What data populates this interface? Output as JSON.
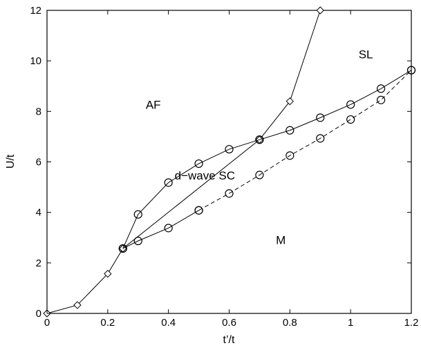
{
  "chart_data": {
    "type": "line",
    "title": "",
    "xlabel": "t’/t",
    "ylabel": "U/t",
    "xlim": [
      0,
      1.2
    ],
    "ylim": [
      0,
      12
    ],
    "x_ticks": [
      0,
      0.2,
      0.4,
      0.6,
      0.8,
      1,
      1.2
    ],
    "x_tick_labels": [
      "0",
      "0.2",
      "0.4",
      "0.6",
      "0.8",
      "1",
      "1.2"
    ],
    "y_ticks": [
      0,
      2,
      4,
      6,
      8,
      10,
      12
    ],
    "y_tick_labels": [
      "0",
      "2",
      "4",
      "6",
      "8",
      "10",
      "12"
    ],
    "grid": false,
    "legend": false,
    "series": [
      {
        "line_style": "solid",
        "marker": "diamond",
        "color": "#000000",
        "points": [
          [
            0,
            0
          ],
          [
            0.1,
            0.33
          ],
          [
            0.2,
            1.57
          ],
          [
            0.25,
            2.57
          ],
          [
            0.7,
            6.88
          ],
          [
            0.8,
            8.4
          ],
          [
            0.9,
            12
          ]
        ]
      },
      {
        "line_style": "solid",
        "marker": "circle",
        "color": "#000000",
        "points": [
          [
            0.25,
            2.57
          ],
          [
            0.3,
            3.92
          ],
          [
            0.4,
            5.18
          ],
          [
            0.5,
            5.93
          ],
          [
            0.6,
            6.5
          ],
          [
            0.7,
            6.88
          ]
        ]
      },
      {
        "line_style": "solid",
        "marker": "circle",
        "color": "#000000",
        "points": [
          [
            0.25,
            2.57
          ],
          [
            0.3,
            2.87
          ],
          [
            0.4,
            3.38
          ],
          [
            0.5,
            4.08
          ]
        ]
      },
      {
        "line_style": "dashed",
        "marker": "circle",
        "color": "#000000",
        "points": [
          [
            0.5,
            4.08
          ],
          [
            0.6,
            4.75
          ],
          [
            0.7,
            5.48
          ],
          [
            0.8,
            6.25
          ],
          [
            0.9,
            6.93
          ],
          [
            1.0,
            7.68
          ],
          [
            1.1,
            8.45
          ],
          [
            1.2,
            9.63
          ]
        ]
      },
      {
        "line_style": "solid",
        "marker": "circle",
        "color": "#000000",
        "points": [
          [
            0.7,
            6.88
          ],
          [
            0.8,
            7.25
          ],
          [
            0.9,
            7.75
          ],
          [
            1.0,
            8.27
          ],
          [
            1.1,
            8.9
          ],
          [
            1.2,
            9.63
          ]
        ]
      }
    ],
    "annotations": [
      {
        "text": "AF",
        "x": 0.35,
        "y": 8.1
      },
      {
        "text": "SL",
        "x": 1.05,
        "y": 10.1
      },
      {
        "text": "d−wave SC",
        "x": 0.52,
        "y": 5.3
      },
      {
        "text": "M",
        "x": 0.77,
        "y": 2.75
      }
    ]
  }
}
